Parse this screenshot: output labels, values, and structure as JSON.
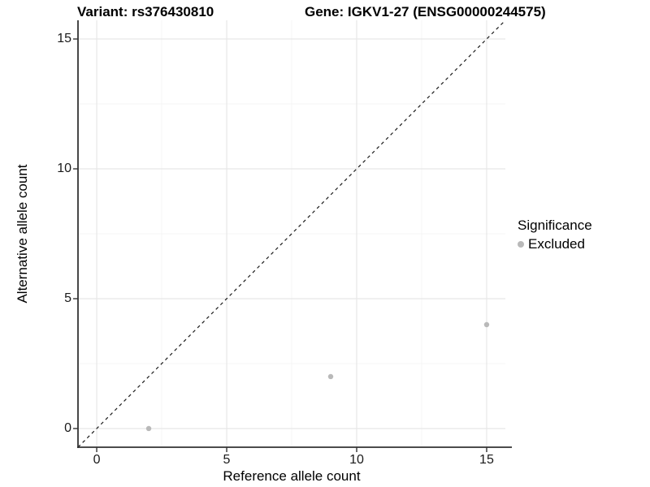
{
  "titles": {
    "variant": "Variant: rs376430810",
    "gene": "Gene: IGKV1-27 (ENSG00000244575)"
  },
  "chart_data": {
    "type": "scatter",
    "xlabel": "Reference allele count",
    "ylabel": "Alternative allele count",
    "xlim": [
      -0.72,
      15.72
    ],
    "ylim": [
      -0.72,
      15.72
    ],
    "x_ticks": [
      0,
      5,
      10,
      15
    ],
    "y_ticks": [
      0,
      5,
      10,
      15
    ],
    "x_minor_ticks": [
      2.5,
      7.5,
      12.5
    ],
    "y_minor_ticks": [
      2.5,
      7.5,
      12.5
    ],
    "grid": true,
    "series": [
      {
        "name": "Excluded",
        "color": "#b9b9b9",
        "points": [
          {
            "x": 2,
            "y": 0
          },
          {
            "x": 9,
            "y": 2
          },
          {
            "x": 15,
            "y": 4
          }
        ]
      }
    ],
    "reference_line": {
      "type": "identity",
      "style": "dashed",
      "color": "#1a1a1a"
    },
    "legend": {
      "title": "Significance",
      "position": "right",
      "items": [
        {
          "label": "Excluded",
          "color": "#b9b9b9",
          "marker": "circle"
        }
      ]
    }
  },
  "colors": {
    "background": "#ffffff",
    "grid_major": "#e7e7e7",
    "grid_minor": "#f4f4f4",
    "axis_line": "#333333",
    "axis_text": "#1a1a1a",
    "point": "#b9b9b9"
  }
}
